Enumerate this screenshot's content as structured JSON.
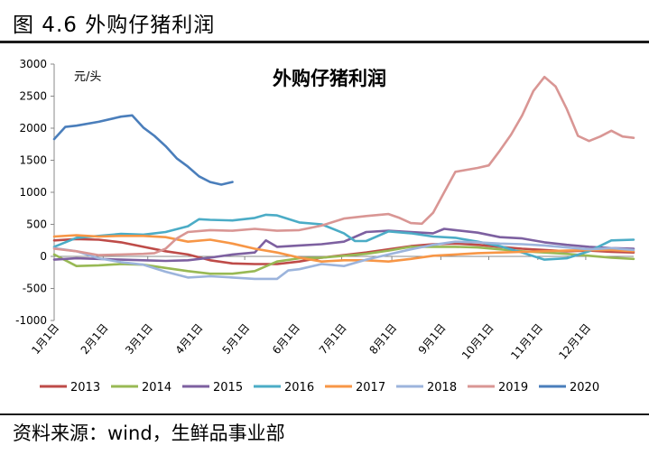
{
  "figure_title": "图 4.6 外购仔猪利润",
  "source": "资料来源：wind，生鲜品事业部",
  "chart_data": {
    "type": "line",
    "title": "外购仔猪利润",
    "unit_label": "元/头",
    "xlabel": "",
    "ylabel": "",
    "ylim": [
      -1000,
      3000
    ],
    "yticks": [
      -1000,
      -500,
      0,
      500,
      1000,
      1500,
      2000,
      2500,
      3000
    ],
    "xlim": [
      1,
      53
    ],
    "xticks": [
      {
        "label": "1月1日",
        "x": 1
      },
      {
        "label": "2月1日",
        "x": 5.4
      },
      {
        "label": "3月1日",
        "x": 9.4
      },
      {
        "label": "4月1日",
        "x": 13.9
      },
      {
        "label": "5月1日",
        "x": 18.1
      },
      {
        "label": "6月1日",
        "x": 22.6
      },
      {
        "label": "7月1日",
        "x": 26.8
      },
      {
        "label": "8月1日",
        "x": 31.3
      },
      {
        "label": "9月1日",
        "x": 35.7
      },
      {
        "label": "10月1日",
        "x": 40.0
      },
      {
        "label": "11月1日",
        "x": 44.4
      },
      {
        "label": "12月1日",
        "x": 48.7
      }
    ],
    "grid": false,
    "legend_position": "bottom",
    "series": [
      {
        "name": "2013",
        "color": "#be4b48",
        "x": [
          1,
          3,
          5,
          7,
          9,
          11,
          13,
          15,
          17,
          19,
          21,
          23,
          25,
          27,
          29,
          31,
          33,
          35,
          37,
          39,
          41,
          43,
          45,
          47,
          49,
          51,
          53
        ],
        "y": [
          250,
          270,
          260,
          220,
          150,
          80,
          30,
          -60,
          -110,
          -120,
          -120,
          -80,
          -20,
          20,
          60,
          110,
          160,
          190,
          200,
          180,
          150,
          120,
          100,
          80,
          90,
          70,
          60
        ]
      },
      {
        "name": "2014",
        "color": "#98b954",
        "x": [
          1,
          3,
          5,
          7,
          9,
          11,
          13,
          15,
          17,
          19,
          21,
          23,
          25,
          27,
          29,
          31,
          33,
          35,
          37,
          39,
          41,
          43,
          45,
          47,
          49,
          51,
          53
        ],
        "y": [
          30,
          -150,
          -140,
          -120,
          -130,
          -180,
          -230,
          -270,
          -270,
          -230,
          -80,
          -30,
          -20,
          10,
          40,
          90,
          150,
          150,
          150,
          140,
          110,
          80,
          60,
          40,
          10,
          -20,
          -40
        ]
      },
      {
        "name": "2015",
        "color": "#7d60a0",
        "x": [
          1,
          3,
          5,
          7,
          9,
          11,
          13,
          15,
          17,
          19,
          20,
          21,
          23,
          25,
          27,
          29,
          31,
          33,
          35,
          36,
          37,
          39,
          41,
          43,
          45,
          47,
          49,
          51,
          53
        ],
        "y": [
          -50,
          -30,
          -40,
          -50,
          -60,
          -70,
          -60,
          -20,
          30,
          60,
          250,
          150,
          170,
          190,
          230,
          380,
          400,
          380,
          360,
          430,
          410,
          370,
          300,
          280,
          220,
          180,
          150,
          130,
          120
        ]
      },
      {
        "name": "2016",
        "color": "#4bacc6",
        "x": [
          1,
          3,
          5,
          7,
          9,
          11,
          13,
          14,
          15,
          17,
          19,
          20,
          21,
          23,
          25,
          27,
          28,
          29,
          31,
          33,
          35,
          37,
          39,
          41,
          43,
          45,
          47,
          49,
          51,
          53
        ],
        "y": [
          150,
          290,
          320,
          350,
          340,
          380,
          470,
          580,
          570,
          560,
          600,
          650,
          640,
          530,
          500,
          360,
          240,
          240,
          390,
          360,
          310,
          290,
          230,
          160,
          60,
          -50,
          -30,
          80,
          250,
          260
        ]
      },
      {
        "name": "2017",
        "color": "#f79646",
        "x": [
          1,
          3,
          5,
          7,
          9,
          11,
          13,
          15,
          17,
          19,
          21,
          23,
          25,
          27,
          29,
          31,
          33,
          35,
          37,
          39,
          41,
          43,
          45,
          47,
          49,
          51,
          53
        ],
        "y": [
          310,
          330,
          310,
          320,
          320,
          300,
          230,
          260,
          200,
          120,
          60,
          -20,
          -80,
          -60,
          -60,
          -80,
          -40,
          10,
          30,
          50,
          60,
          70,
          80,
          90,
          100,
          100,
          80
        ]
      },
      {
        "name": "2018",
        "color": "#9cb4dc",
        "x": [
          1,
          3,
          5,
          7,
          9,
          11,
          13,
          15,
          17,
          19,
          21,
          22,
          23,
          25,
          27,
          29,
          31,
          33,
          35,
          37,
          39,
          41,
          43,
          45,
          47,
          49,
          51,
          53
        ],
        "y": [
          130,
          80,
          -30,
          -90,
          -130,
          -240,
          -330,
          -310,
          -330,
          -350,
          -350,
          -220,
          -200,
          -120,
          -150,
          -50,
          30,
          110,
          180,
          230,
          220,
          200,
          190,
          170,
          140,
          110,
          130,
          100
        ]
      },
      {
        "name": "2019",
        "color": "#d99694",
        "x": [
          1,
          3,
          5,
          7,
          9,
          10,
          11,
          12,
          13,
          15,
          17,
          19,
          21,
          23,
          25,
          27,
          29,
          31,
          32,
          33,
          34,
          35,
          36,
          37,
          39,
          40,
          41,
          42,
          43,
          44,
          45,
          46,
          47,
          48,
          49,
          50,
          51,
          52,
          53
        ],
        "y": [
          120,
          80,
          20,
          30,
          40,
          50,
          120,
          280,
          380,
          410,
          400,
          430,
          400,
          410,
          480,
          590,
          630,
          660,
          600,
          520,
          510,
          680,
          1000,
          1320,
          1380,
          1420,
          1650,
          1900,
          2200,
          2580,
          2800,
          2650,
          2300,
          1880,
          1800,
          1870,
          1960,
          1870,
          1850
        ]
      },
      {
        "name": "2020",
        "color": "#4a7ebb",
        "x": [
          1,
          2,
          3,
          5,
          7,
          8,
          9,
          10,
          11,
          12,
          13,
          14,
          15,
          16,
          17
        ],
        "y": [
          1830,
          2020,
          2040,
          2100,
          2180,
          2200,
          2010,
          1880,
          1720,
          1530,
          1400,
          1250,
          1160,
          1120,
          1160
        ]
      }
    ]
  }
}
